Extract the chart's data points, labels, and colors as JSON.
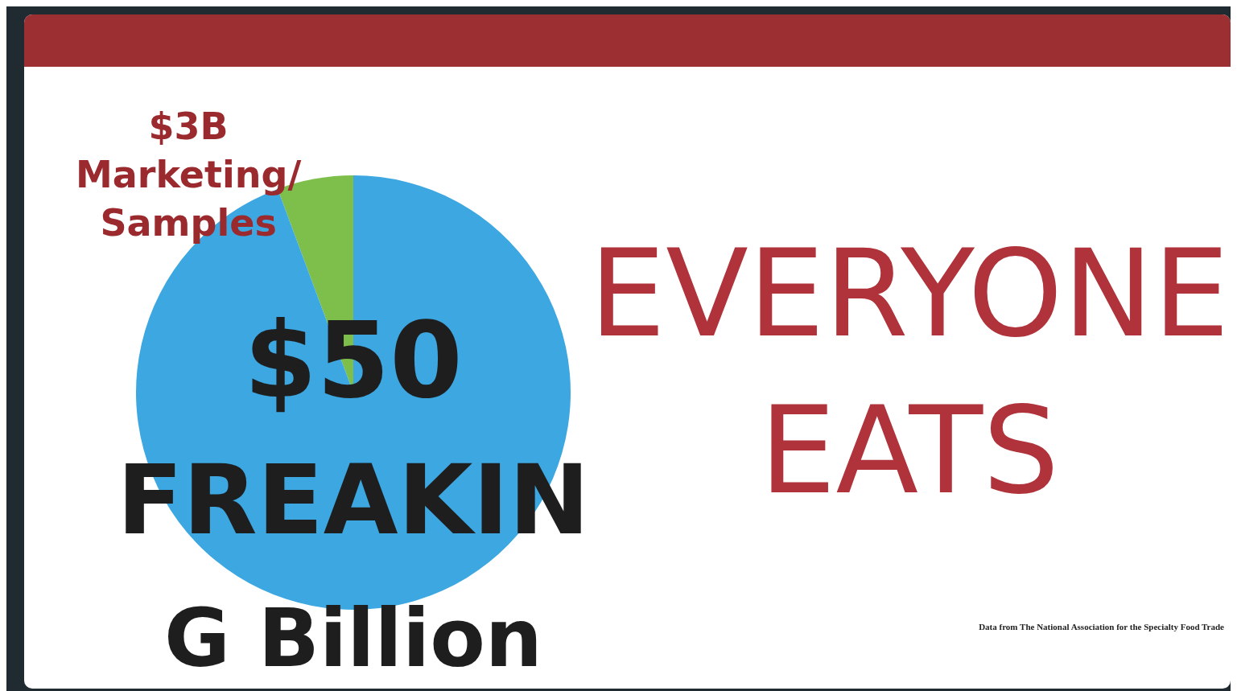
{
  "chart_data": {
    "type": "pie",
    "title": "EVERYONE EATS",
    "categories": [
      "Marketing/ Samples",
      null
    ],
    "values": [
      3,
      50
    ],
    "colors": [
      "#7dbf4a",
      "#3ca7e0"
    ],
    "value_labels": [
      "$3B",
      "$50 FREAKIN G Billion"
    ],
    "annotations": [
      "Data from The National Association for the Specialty Food Trade"
    ],
    "legend": false
  }
}
